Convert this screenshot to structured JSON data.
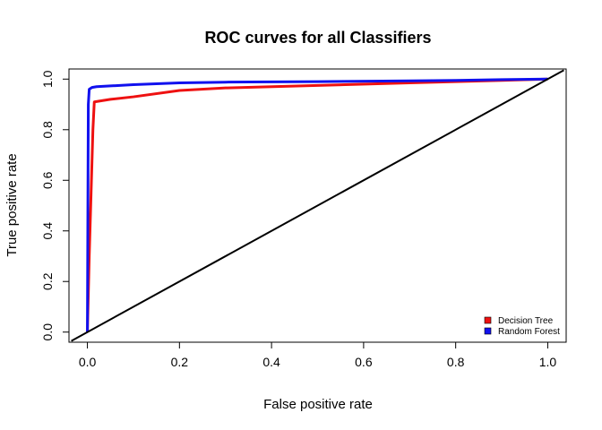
{
  "chart_data": {
    "type": "line",
    "title": "ROC curves for all Classifiers",
    "xlabel": "False positive rate",
    "ylabel": "True positive rate",
    "xlim": [
      0.0,
      1.0
    ],
    "ylim": [
      0.0,
      1.0
    ],
    "xticks": [
      "0.0",
      "0.2",
      "0.4",
      "0.6",
      "0.8",
      "1.0"
    ],
    "yticks": [
      "0.0",
      "0.2",
      "0.4",
      "0.6",
      "0.8",
      "1.0"
    ],
    "grid": false,
    "legend_position": "bottom-right",
    "series": [
      {
        "name": "Decision Tree",
        "color": "#ee1111",
        "x": [
          0.0,
          0.004,
          0.008,
          0.012,
          0.015,
          0.05,
          0.1,
          0.2,
          0.3,
          0.5,
          0.7,
          0.8,
          0.9,
          1.0
        ],
        "y": [
          0.0,
          0.3,
          0.55,
          0.8,
          0.91,
          0.92,
          0.93,
          0.955,
          0.965,
          0.975,
          0.985,
          0.99,
          0.995,
          1.0
        ]
      },
      {
        "name": "Random Forest",
        "color": "#1111ee",
        "x": [
          0.0,
          0.002,
          0.004,
          0.01,
          0.02,
          0.05,
          0.1,
          0.2,
          0.3,
          0.5,
          0.7,
          0.8,
          0.9,
          1.0
        ],
        "y": [
          0.0,
          0.9,
          0.96,
          0.967,
          0.97,
          0.973,
          0.978,
          0.985,
          0.988,
          0.99,
          0.993,
          0.995,
          0.998,
          1.0
        ]
      },
      {
        "color": "#000000",
        "x": [
          -0.035,
          1.035
        ],
        "y": [
          -0.035,
          1.035
        ]
      }
    ]
  }
}
